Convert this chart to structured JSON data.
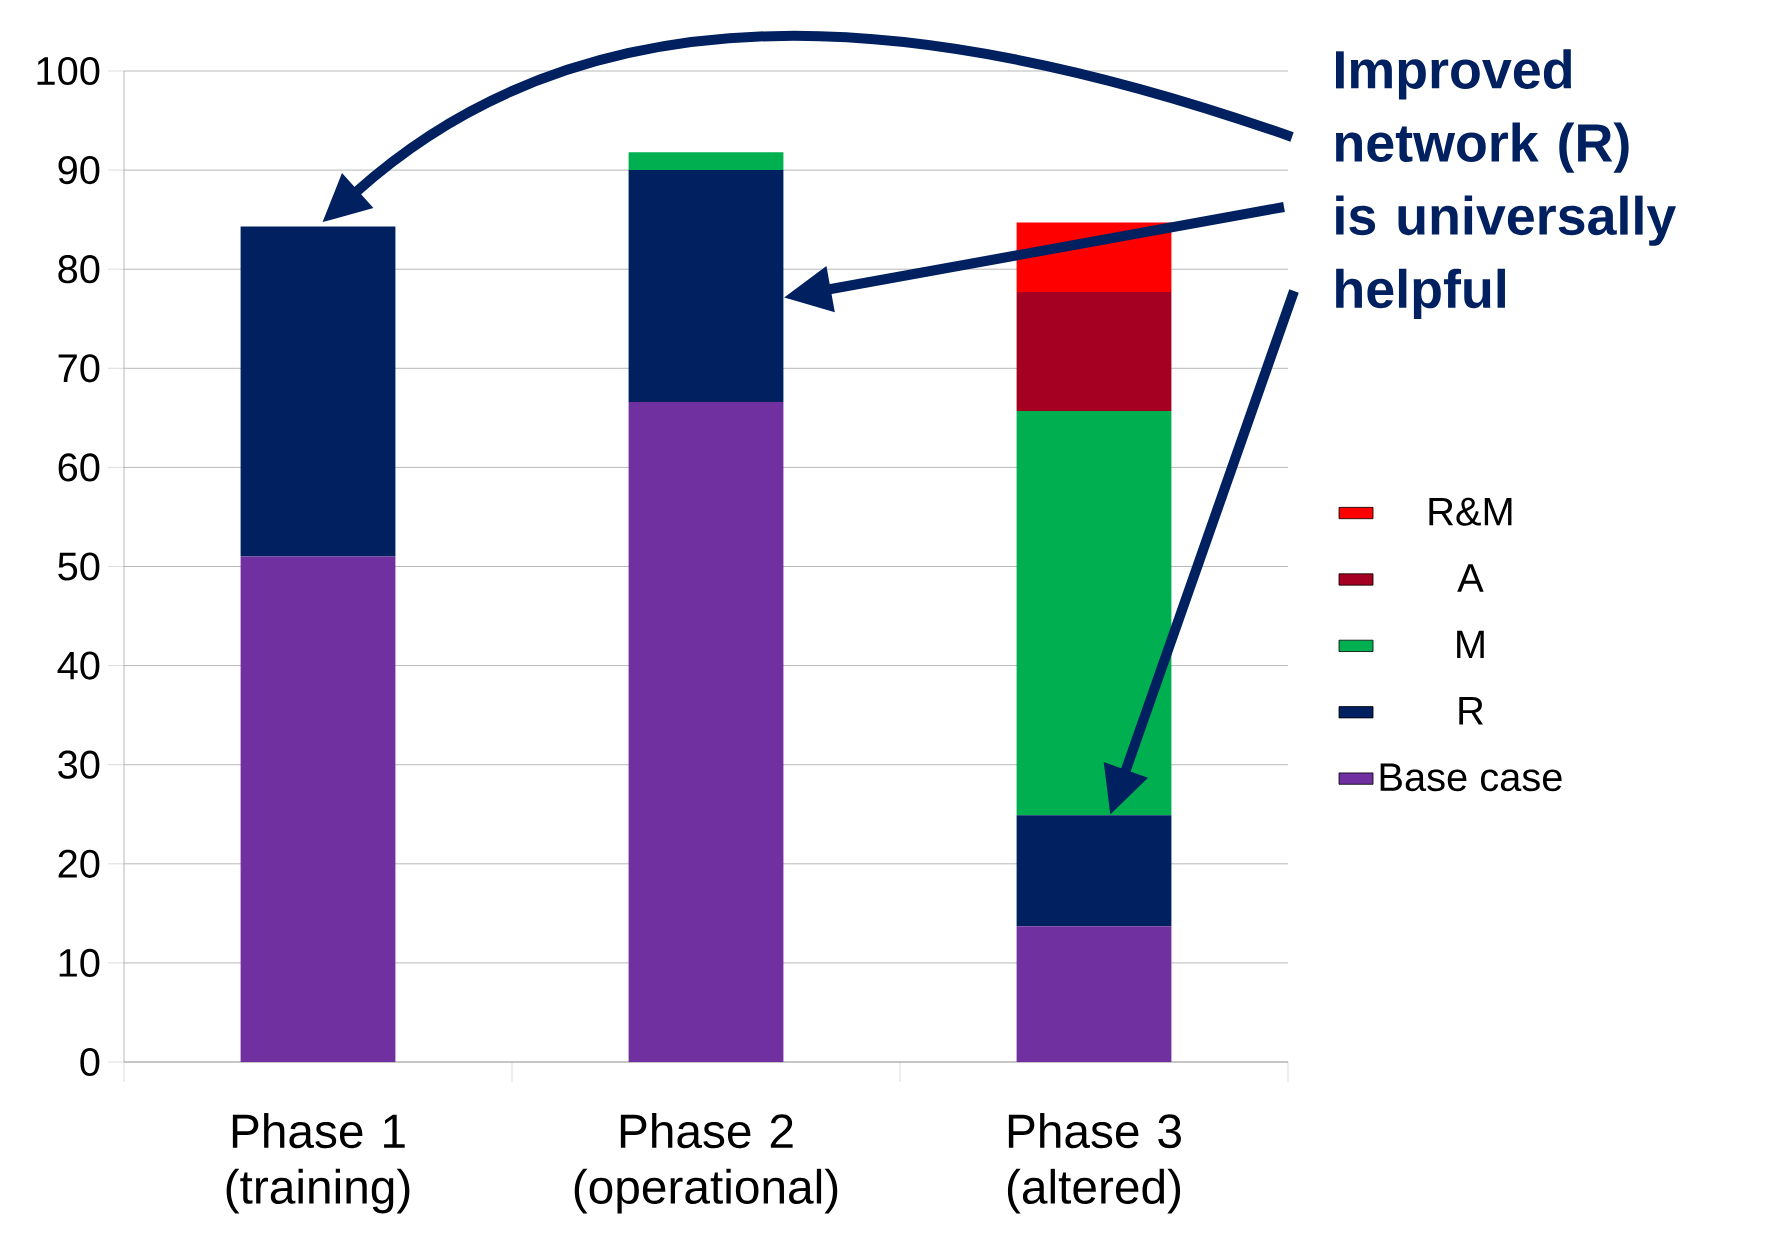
{
  "chart_data": {
    "type": "bar",
    "stacked": true,
    "categories": [
      "Phase 1 (training)",
      "Phase 2 (operational)",
      "Phase 3 (altered)"
    ],
    "series": [
      {
        "name": "Base case",
        "color": "#7030a0",
        "values": [
          51,
          66.6,
          13.7
        ]
      },
      {
        "name": "R",
        "color": "#002060",
        "values": [
          33.3,
          23.4,
          11.2
        ]
      },
      {
        "name": "M",
        "color": "#00b050",
        "values": [
          0,
          1.8,
          40.8
        ]
      },
      {
        "name": "A",
        "color": "#a50021",
        "values": [
          0,
          0,
          12.0
        ]
      },
      {
        "name": "R&M",
        "color": "#ff0000",
        "values": [
          0,
          0,
          7.0
        ]
      }
    ],
    "ylim": [
      0,
      100
    ],
    "yticks": [
      0,
      10,
      20,
      30,
      40,
      50,
      60,
      70,
      80,
      90,
      100
    ],
    "grid": "y",
    "legend": "right",
    "annotations": [
      "Improved network (R) is universally helpful"
    ]
  }
}
